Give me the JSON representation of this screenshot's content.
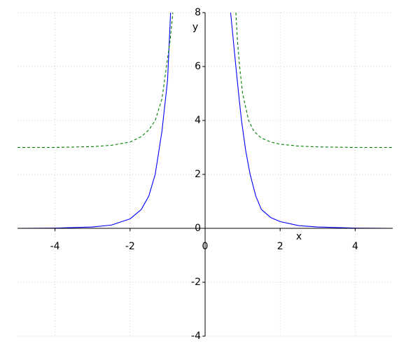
{
  "chart_data": {
    "type": "line",
    "xlabel": "x",
    "ylabel": "y",
    "xlim": [
      -5,
      5
    ],
    "ylim": [
      -4,
      8
    ],
    "xticks": [
      -4,
      -2,
      0,
      2,
      4
    ],
    "yticks": [
      -4,
      -2,
      0,
      2,
      4,
      6,
      8
    ],
    "grid": true,
    "series": [
      {
        "color": "#0000ff",
        "dash": false,
        "x": [
          -5,
          -4,
          -3,
          -2.5,
          -2,
          -1.7,
          -1.5,
          -1.33,
          -1.15,
          -1.0,
          -0.92,
          null,
          0.68,
          0.75,
          0.82,
          0.9,
          0.97,
          1.08,
          1.2,
          1.35,
          1.5,
          1.75,
          2,
          2.5,
          3,
          4,
          5
        ],
        "values": [
          0,
          0.01,
          0.05,
          0.12,
          0.35,
          0.7,
          1.2,
          2,
          3.6,
          5.5,
          8,
          null,
          8,
          7,
          6,
          4.9,
          4,
          2.9,
          2,
          1.2,
          0.7,
          0.4,
          0.25,
          0.1,
          0.05,
          0.01,
          0
        ]
      },
      {
        "color": "#008000",
        "dash": true,
        "x": [
          -5,
          -4,
          -3,
          -2.5,
          -2,
          -1.7,
          -1.5,
          -1.33,
          -1.15,
          -1.03,
          -0.93,
          -0.86,
          null,
          0.82,
          0.86,
          0.92,
          1.0,
          1.16,
          1.3,
          1.5,
          1.75,
          2,
          2.5,
          3,
          4,
          5
        ],
        "values": [
          3,
          3,
          3.03,
          3.08,
          3.2,
          3.4,
          3.65,
          4,
          4.8,
          6,
          7,
          8,
          null,
          8,
          7,
          6,
          5,
          4,
          3.6,
          3.35,
          3.2,
          3.12,
          3.05,
          3.02,
          3,
          3
        ]
      }
    ]
  }
}
